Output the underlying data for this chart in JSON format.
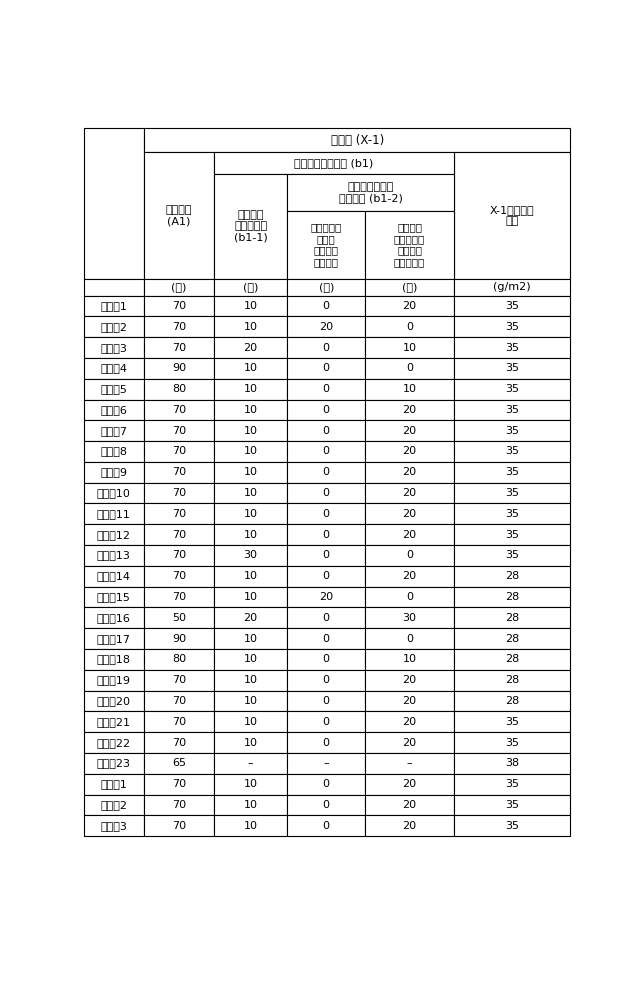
{
  "title_top": "前体片 (X-1)",
  "header_b1": "氧化纤维前体纤维 (b1)",
  "header_b12_line1": "原纤状氧化纤维",
  "header_b12_line2": "前体纤维 (b1-2)",
  "col1_header_line1": "碳短纤维",
  "col1_header_line2": "(A1)",
  "col2_header_line1": "氧化纤维",
  "col2_header_line2": "前体短纤维",
  "col2_header_line3": "(b1-1)",
  "col3_header_line1": "分支出多个",
  "col3_header_line2": "原纤的",
  "col3_header_line3": "氧化纤维",
  "col3_header_line4": "前体纤维",
  "col4_header_line1": "通过打浆",
  "col4_header_line2": "而原纤化的",
  "col4_header_line3": "氧化纤维",
  "col4_header_line4": "前体短纤维",
  "col5_header_line1": "X-1单位面积",
  "col5_header_line2": "重量",
  "unit_row": [
    "",
    "(份)",
    "(份)",
    "(份)",
    "(份)",
    "(g/m2)"
  ],
  "rows": [
    [
      "实施例1",
      "70",
      "10",
      "0",
      "20",
      "35"
    ],
    [
      "实施例2",
      "70",
      "10",
      "20",
      "0",
      "35"
    ],
    [
      "实施例3",
      "70",
      "20",
      "0",
      "10",
      "35"
    ],
    [
      "实施例4",
      "90",
      "10",
      "0",
      "0",
      "35"
    ],
    [
      "实施例5",
      "80",
      "10",
      "0",
      "10",
      "35"
    ],
    [
      "实施例6",
      "70",
      "10",
      "0",
      "20",
      "35"
    ],
    [
      "实施例7",
      "70",
      "10",
      "0",
      "20",
      "35"
    ],
    [
      "实施例8",
      "70",
      "10",
      "0",
      "20",
      "35"
    ],
    [
      "实施例9",
      "70",
      "10",
      "0",
      "20",
      "35"
    ],
    [
      "实施例10",
      "70",
      "10",
      "0",
      "20",
      "35"
    ],
    [
      "实施例11",
      "70",
      "10",
      "0",
      "20",
      "35"
    ],
    [
      "实施例12",
      "70",
      "10",
      "0",
      "20",
      "35"
    ],
    [
      "实施例13",
      "70",
      "30",
      "0",
      "0",
      "35"
    ],
    [
      "实施例14",
      "70",
      "10",
      "0",
      "20",
      "28"
    ],
    [
      "实施例15",
      "70",
      "10",
      "20",
      "0",
      "28"
    ],
    [
      "实施例16",
      "50",
      "20",
      "0",
      "30",
      "28"
    ],
    [
      "实施例17",
      "90",
      "10",
      "0",
      "0",
      "28"
    ],
    [
      "实施例18",
      "80",
      "10",
      "0",
      "10",
      "28"
    ],
    [
      "实施例19",
      "70",
      "10",
      "0",
      "20",
      "28"
    ],
    [
      "实施例20",
      "70",
      "10",
      "0",
      "20",
      "28"
    ],
    [
      "实施例21",
      "70",
      "10",
      "0",
      "20",
      "35"
    ],
    [
      "实施例22",
      "70",
      "10",
      "0",
      "20",
      "35"
    ],
    [
      "实施例23",
      "65",
      "–",
      "–",
      "–",
      "38"
    ],
    [
      "比较例1",
      "70",
      "10",
      "0",
      "20",
      "35"
    ],
    [
      "比较例2",
      "70",
      "10",
      "0",
      "20",
      "35"
    ],
    [
      "比较例3",
      "70",
      "10",
      "0",
      "20",
      "35"
    ]
  ],
  "line_color": "#000000",
  "text_color": "#000000",
  "font_size": 8.0,
  "header_font_size": 8.0
}
